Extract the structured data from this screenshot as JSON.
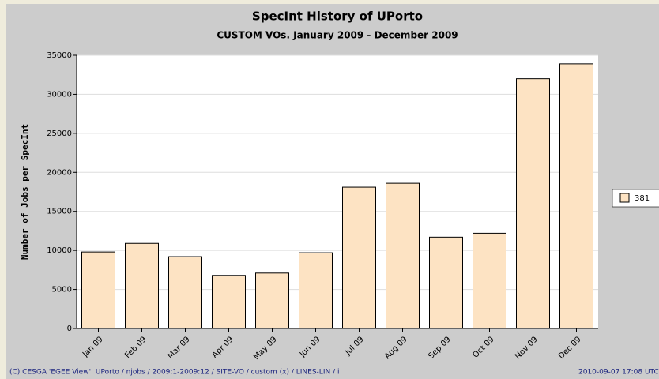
{
  "chart_data": {
    "type": "bar",
    "title": "SpecInt History of UPorto",
    "subtitle": "CUSTOM VOs. January 2009 - December 2009",
    "y_label": "Number of Jobs per SpecInt",
    "categories": [
      "Jan 09",
      "Feb 09",
      "Mar 09",
      "Apr 09",
      "May 09",
      "Jun 09",
      "Jul 09",
      "Aug 09",
      "Sep 09",
      "Oct 09",
      "Nov 09",
      "Dec 09"
    ],
    "series": [
      {
        "name": "381",
        "color": "#fde3c3",
        "values": [
          9800,
          10900,
          9200,
          6800,
          7100,
          9700,
          18100,
          18600,
          11700,
          12200,
          32000,
          33900
        ]
      }
    ],
    "ylim": [
      0,
      35000
    ],
    "yticks": [
      0,
      5000,
      10000,
      15000,
      20000,
      25000,
      30000,
      35000
    ],
    "grid": true,
    "footer_left": "(C) CESGA 'EGEE View': UPorto / njobs / 2009:1-2009:12 / SITE-VO / custom (x) / LINES-LIN / i",
    "footer_right": "2010-09-07 17:08 UTC"
  }
}
